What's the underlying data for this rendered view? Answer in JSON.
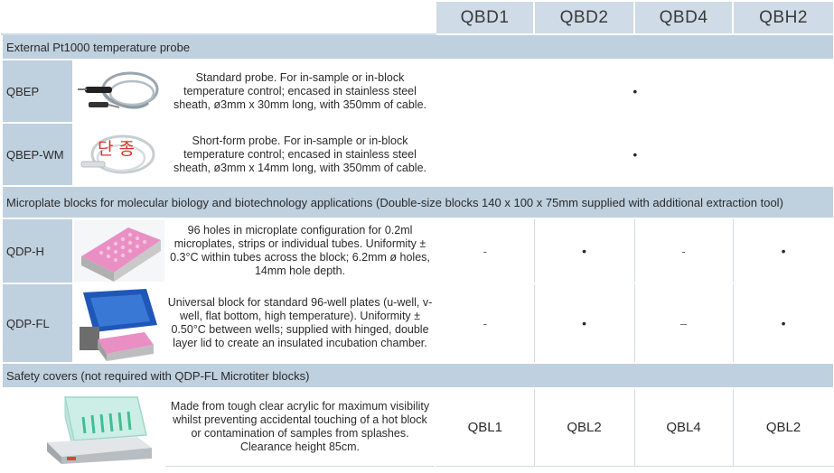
{
  "columns": [
    "QBD1",
    "QBD2",
    "QBD4",
    "QBH2"
  ],
  "sections": [
    {
      "title": "External Pt1000 temperature probe",
      "rows": [
        {
          "code": "QBEP",
          "image": "probe-image",
          "description": "Standard probe. For in-sample or in-block temperature control; encased in stainless steel sheath, ø3mm x 30mm long, with 350mm of cable.",
          "spanned_value": "•"
        },
        {
          "code": "QBEP-WM",
          "image": "short-probe-image",
          "stamp": "단 종",
          "description": "Short-form probe. For in-sample or in-block temperature control; encased in stainless steel sheath, ø3mm x 14mm long, with 350mm of cable.",
          "spanned_value": "•"
        }
      ]
    },
    {
      "title": "Microplate blocks for molecular biology and biotechnology applications (Double-size blocks 140 x 100 x 75mm supplied with additional extraction tool)",
      "rows": [
        {
          "code": "QDP-H",
          "image": "microplate-block-image",
          "description": "96 holes in microplate configuration for 0.2ml microplates, strips or individual tubes. Uniformity ± 0.3°C within tubes across the block; 6.2mm ø holes, 14mm hole depth.",
          "values": [
            "-",
            "•",
            "-",
            "•"
          ]
        },
        {
          "code": "QDP-FL",
          "image": "hinged-lid-block-image",
          "description": "Universal block for standard 96-well plates (u-well, v-well, flat bottom, high temperature). Uniformity ± 0.50°C between wells; supplied with hinged, double layer lid to create an insulated incubation chamber.",
          "values": [
            "-",
            "•",
            "–",
            "•"
          ]
        }
      ]
    },
    {
      "title": "Safety covers (not required with QDP-FL Microtiter blocks)",
      "rows": [
        {
          "code": "",
          "image": "safety-cover-image",
          "description": "Made from tough clear acrylic for maximum visibility whilst preventing accidental touching of a hot block or contamination of samples from splashes. Clearance height 85cm.",
          "values": [
            "QBL1",
            "QBL2",
            "QBL4",
            "QBL2"
          ]
        }
      ]
    }
  ]
}
